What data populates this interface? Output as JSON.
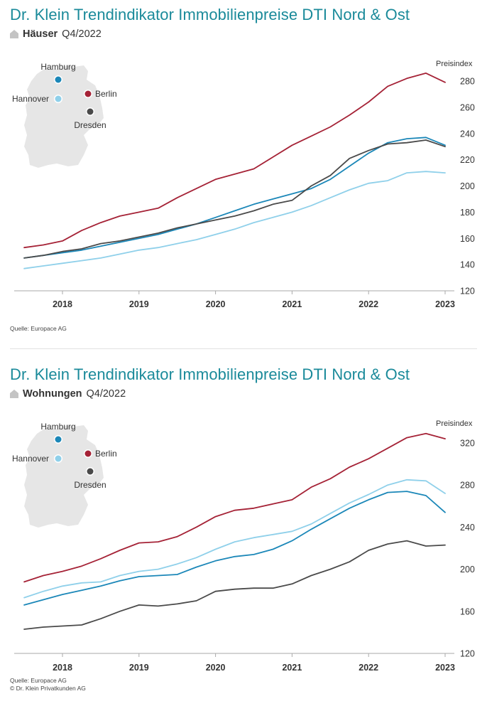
{
  "charts": [
    {
      "title": "Dr. Klein Trendindikator Immobilienpreise DTI Nord & Ost",
      "subtitle_bold": "Häuser",
      "subtitle_rest": "Q4/2022",
      "source_lines": [
        "Quelle: Europace AG"
      ],
      "icon": "house-icon"
    },
    {
      "title": "Dr. Klein Trendindikator Immobilienpreise DTI Nord & Ost",
      "subtitle_bold": "Wohnungen",
      "subtitle_rest": "Q4/2022",
      "source_lines": [
        "Quelle: Europace AG",
        "© Dr. Klein Privatkunden AG"
      ],
      "icon": "house-icon"
    }
  ],
  "colors": {
    "berlin": "#a52236",
    "hamburg": "#1b87b8",
    "hannover": "#8fd0ea",
    "dresden": "#4a4a4a",
    "map": "#e6e6e6",
    "axis": "#aaaaaa",
    "title": "#1a8a9a"
  },
  "legend_map": {
    "cities": [
      {
        "name": "Hamburg",
        "key": "hamburg"
      },
      {
        "name": "Hannover",
        "key": "hannover"
      },
      {
        "name": "Berlin",
        "key": "berlin"
      },
      {
        "name": "Dresden",
        "key": "dresden"
      }
    ]
  },
  "chart_data": [
    {
      "type": "line",
      "title": "Dr. Klein Trendindikator Immobilienpreise DTI Nord & Ost",
      "subtitle": "Häuser Q4/2022",
      "ylabel": "Preisindex",
      "xlabel": "",
      "ylim": [
        120,
        280
      ],
      "yticks": [
        120,
        140,
        160,
        180,
        200,
        220,
        240,
        260,
        280
      ],
      "xlim": [
        2017.5,
        2023.0
      ],
      "xticks": [
        "2018",
        "2019",
        "2020",
        "2021",
        "2022",
        "2023"
      ],
      "grid": false,
      "legend": "map-top-left",
      "x": [
        2017.5,
        2017.75,
        2018.0,
        2018.25,
        2018.5,
        2018.75,
        2019.0,
        2019.25,
        2019.5,
        2019.75,
        2020.0,
        2020.25,
        2020.5,
        2020.75,
        2021.0,
        2021.25,
        2021.5,
        2021.75,
        2022.0,
        2022.25,
        2022.5,
        2022.75,
        2023.0
      ],
      "series": [
        {
          "name": "Berlin",
          "color_key": "berlin",
          "values": [
            153,
            155,
            158,
            166,
            172,
            177,
            180,
            183,
            191,
            198,
            205,
            209,
            213,
            222,
            231,
            238,
            245,
            254,
            264,
            276,
            282,
            286,
            279
          ]
        },
        {
          "name": "Hamburg",
          "color_key": "hamburg",
          "values": [
            145,
            147,
            149,
            151,
            154,
            157,
            160,
            163,
            167,
            171,
            176,
            181,
            186,
            190,
            194,
            198,
            205,
            215,
            225,
            233,
            236,
            237,
            231
          ]
        },
        {
          "name": "Hannover",
          "color_key": "hannover",
          "values": [
            137,
            139,
            141,
            143,
            145,
            148,
            151,
            153,
            156,
            159,
            163,
            167,
            172,
            176,
            180,
            185,
            191,
            197,
            202,
            204,
            210,
            211,
            210
          ]
        },
        {
          "name": "Dresden",
          "color_key": "dresden",
          "values": [
            145,
            147,
            150,
            152,
            156,
            158,
            161,
            164,
            168,
            171,
            174,
            177,
            181,
            186,
            189,
            200,
            208,
            221,
            227,
            232,
            233,
            235,
            230
          ]
        }
      ]
    },
    {
      "type": "line",
      "title": "Dr. Klein Trendindikator Immobilienpreise DTI Nord & Ost",
      "subtitle": "Wohnungen Q4/2022",
      "ylabel": "Preisindex",
      "xlabel": "",
      "ylim": [
        120,
        320
      ],
      "yticks": [
        120,
        160,
        200,
        240,
        280,
        320
      ],
      "xlim": [
        2017.5,
        2023.0
      ],
      "xticks": [
        "2018",
        "2019",
        "2020",
        "2021",
        "2022",
        "2023"
      ],
      "grid": false,
      "legend": "map-top-left",
      "x": [
        2017.5,
        2017.75,
        2018.0,
        2018.25,
        2018.5,
        2018.75,
        2019.0,
        2019.25,
        2019.5,
        2019.75,
        2020.0,
        2020.25,
        2020.5,
        2020.75,
        2021.0,
        2021.25,
        2021.5,
        2021.75,
        2022.0,
        2022.25,
        2022.5,
        2022.75,
        2023.0
      ],
      "series": [
        {
          "name": "Berlin",
          "color_key": "berlin",
          "values": [
            188,
            194,
            198,
            203,
            210,
            218,
            225,
            226,
            231,
            240,
            250,
            256,
            258,
            262,
            266,
            278,
            286,
            297,
            305,
            315,
            325,
            329,
            324
          ]
        },
        {
          "name": "Hannover",
          "color_key": "hannover",
          "values": [
            173,
            179,
            184,
            187,
            188,
            194,
            198,
            200,
            205,
            211,
            219,
            226,
            230,
            233,
            236,
            243,
            253,
            263,
            271,
            280,
            285,
            284,
            272
          ]
        },
        {
          "name": "Hamburg",
          "color_key": "hamburg",
          "values": [
            166,
            171,
            176,
            180,
            184,
            189,
            193,
            194,
            195,
            202,
            208,
            212,
            214,
            219,
            227,
            238,
            248,
            258,
            266,
            273,
            274,
            270,
            254
          ]
        },
        {
          "name": "Dresden",
          "color_key": "dresden",
          "values": [
            143,
            145,
            146,
            147,
            153,
            160,
            166,
            165,
            167,
            170,
            179,
            181,
            182,
            182,
            186,
            194,
            200,
            207,
            218,
            224,
            227,
            222,
            223
          ]
        }
      ]
    }
  ]
}
